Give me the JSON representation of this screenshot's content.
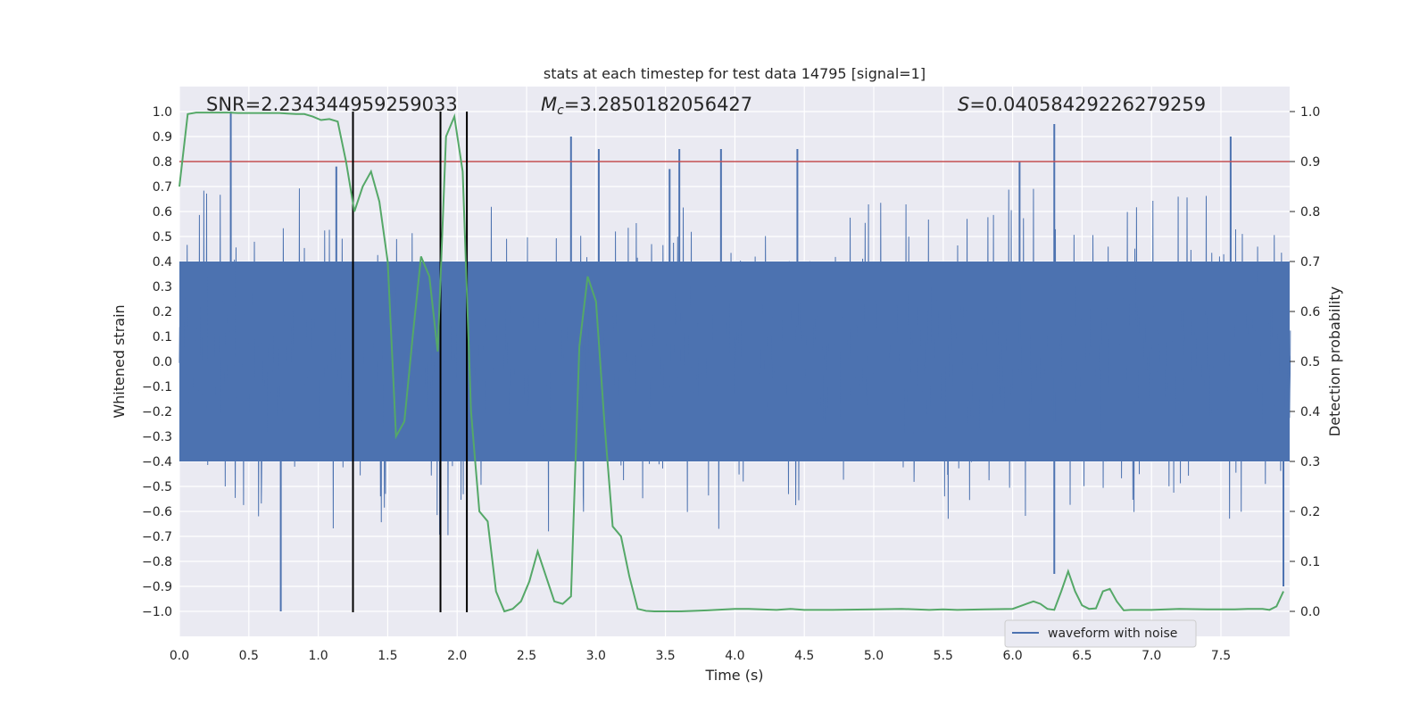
{
  "chart_data": {
    "type": "line",
    "title": "stats at each timestep for test data 14795 [signal=1]",
    "xlabel": "Time (s)",
    "ylabel_left": "Whitened strain",
    "ylabel_right": "Detection probability",
    "xlim": [
      0.0,
      8.0
    ],
    "ylim_left": [
      -1.1,
      1.1
    ],
    "ylim_right": [
      -0.05,
      1.05
    ],
    "grid": true,
    "legend_position": "lower-right",
    "xticks": [
      "0.0",
      "0.5",
      "1.0",
      "1.5",
      "2.0",
      "2.5",
      "3.0",
      "3.5",
      "4.0",
      "4.5",
      "5.0",
      "5.5",
      "6.0",
      "6.5",
      "7.0",
      "7.5"
    ],
    "yticks_left": [
      "1.0",
      "0.9",
      "0.8",
      "0.7",
      "0.6",
      "0.5",
      "0.4",
      "0.3",
      "0.2",
      "0.1",
      "0.0",
      "−0.1",
      "−0.2",
      "−0.3",
      "−0.4",
      "−0.5",
      "−0.6",
      "−0.7",
      "−0.8",
      "−0.9",
      "−1.0"
    ],
    "yticks_right": [
      "1.0",
      "0.9",
      "0.8",
      "0.7",
      "0.6",
      "0.5",
      "0.4",
      "0.3",
      "0.2",
      "0.1",
      "0.0"
    ],
    "annotations": {
      "snr": "SNR=2.234344959259033",
      "mc_symbol": "M",
      "mc_subscript": "c",
      "mc_value": "=3.2850182056427",
      "s_symbol": "S",
      "s_value": "=0.04058429226279259"
    },
    "threshold": {
      "value": 0.9,
      "axis": "right",
      "color": "#c44e52"
    },
    "vertical_lines": {
      "x": [
        1.25,
        1.88,
        2.07
      ],
      "color": "#000000"
    },
    "series": [
      {
        "name": "waveform with noise",
        "axis": "left",
        "color": "#4c72b0",
        "kind": "dense noise waveform",
        "typical_envelope": 0.4,
        "peaks": [
          {
            "x": 0.37,
            "y": 1.0
          },
          {
            "x": 0.73,
            "y": -1.0
          },
          {
            "x": 1.13,
            "y": 0.78
          },
          {
            "x": 2.82,
            "y": 0.9
          },
          {
            "x": 3.02,
            "y": 0.85
          },
          {
            "x": 3.53,
            "y": 0.77
          },
          {
            "x": 3.6,
            "y": 0.85
          },
          {
            "x": 3.9,
            "y": 0.85
          },
          {
            "x": 4.45,
            "y": 0.85
          },
          {
            "x": 6.05,
            "y": 0.8
          },
          {
            "x": 6.3,
            "y": 0.95
          },
          {
            "x": 6.3,
            "y": -0.85
          },
          {
            "x": 7.57,
            "y": 0.9
          },
          {
            "x": 7.95,
            "y": -0.9
          }
        ]
      },
      {
        "name": "",
        "axis": "right",
        "color": "#55a868",
        "x": [
          0.0,
          0.06,
          0.12,
          0.18,
          0.24,
          0.3,
          0.36,
          0.42,
          0.48,
          0.54,
          0.6,
          0.66,
          0.72,
          0.78,
          0.84,
          0.9,
          0.96,
          1.02,
          1.08,
          1.14,
          1.2,
          1.26,
          1.32,
          1.38,
          1.44,
          1.5,
          1.56,
          1.62,
          1.68,
          1.74,
          1.8,
          1.86,
          1.92,
          1.98,
          2.04,
          2.1,
          2.16,
          2.22,
          2.28,
          2.34,
          2.4,
          2.46,
          2.52,
          2.58,
          2.64,
          2.7,
          2.76,
          2.82,
          2.88,
          2.94,
          3.0,
          3.06,
          3.12,
          3.18,
          3.24,
          3.3,
          3.36,
          3.42,
          3.48,
          3.6,
          3.8,
          4.0,
          4.1,
          4.3,
          4.4,
          4.5,
          4.7,
          5.0,
          5.2,
          5.4,
          5.5,
          5.6,
          5.8,
          6.0,
          6.1,
          6.15,
          6.2,
          6.25,
          6.3,
          6.35,
          6.4,
          6.45,
          6.5,
          6.55,
          6.6,
          6.65,
          6.7,
          6.75,
          6.8,
          6.85,
          6.9,
          7.0,
          7.2,
          7.4,
          7.6,
          7.7,
          7.8,
          7.85,
          7.9,
          7.95
        ],
        "y": [
          0.85,
          0.995,
          0.998,
          0.998,
          0.998,
          0.998,
          0.998,
          0.997,
          0.997,
          0.997,
          0.997,
          0.997,
          0.997,
          0.996,
          0.995,
          0.995,
          0.99,
          0.983,
          0.985,
          0.98,
          0.9,
          0.8,
          0.85,
          0.88,
          0.82,
          0.7,
          0.35,
          0.38,
          0.55,
          0.71,
          0.67,
          0.52,
          0.95,
          0.99,
          0.88,
          0.4,
          0.2,
          0.18,
          0.04,
          0.0,
          0.005,
          0.02,
          0.06,
          0.12,
          0.07,
          0.02,
          0.015,
          0.03,
          0.53,
          0.67,
          0.62,
          0.38,
          0.17,
          0.15,
          0.07,
          0.005,
          0.001,
          0.0,
          0.0,
          0.0,
          0.002,
          0.005,
          0.005,
          0.003,
          0.005,
          0.003,
          0.003,
          0.004,
          0.005,
          0.003,
          0.004,
          0.003,
          0.004,
          0.005,
          0.015,
          0.02,
          0.015,
          0.005,
          0.003,
          0.04,
          0.08,
          0.04,
          0.012,
          0.005,
          0.006,
          0.04,
          0.045,
          0.02,
          0.002,
          0.003,
          0.003,
          0.003,
          0.005,
          0.004,
          0.004,
          0.005,
          0.005,
          0.003,
          0.01,
          0.04
        ]
      }
    ]
  }
}
